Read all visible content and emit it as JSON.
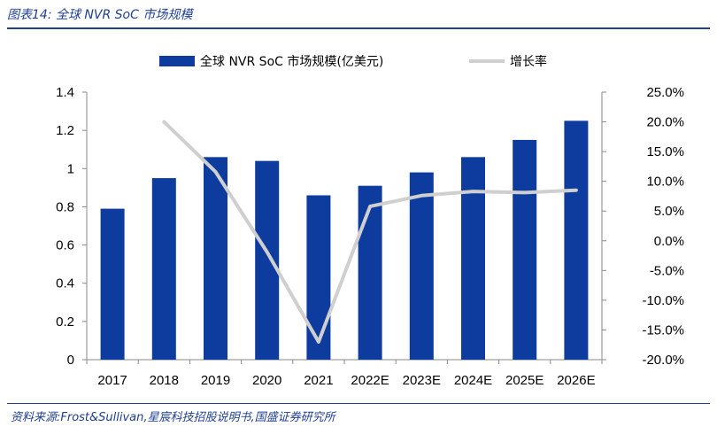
{
  "figure": {
    "title": "图表14:  全球 NVR SoC 市场规模",
    "source": "资料来源:Frost&Sullivan,星宸科技招股说明书,国盛证券研究所"
  },
  "colors": {
    "bar": "#0d3b9e",
    "line": "#cfcfcf",
    "accent": "#1f3f8f"
  },
  "chart_data": {
    "type": "bar",
    "categories": [
      "2017",
      "2018",
      "2019",
      "2020",
      "2021",
      "2022E",
      "2023E",
      "2024E",
      "2025E",
      "2026E"
    ],
    "series": [
      {
        "name": "全球 NVR SoC 市场规模(亿美元)",
        "type": "bar",
        "axis": "left",
        "values": [
          0.79,
          0.95,
          1.06,
          1.04,
          0.86,
          0.91,
          0.98,
          1.06,
          1.15,
          1.25
        ]
      },
      {
        "name": "增长率",
        "type": "line",
        "axis": "right",
        "values": [
          null,
          20.0,
          11.6,
          -1.9,
          -17.0,
          5.8,
          7.6,
          8.3,
          8.1,
          8.5
        ]
      }
    ],
    "ylim_left": [
      0,
      1.4
    ],
    "yticks_left": [
      0,
      0.2,
      0.4,
      0.6,
      0.8,
      1,
      1.2,
      1.4
    ],
    "ytick_labels_left": [
      "0",
      "0.2",
      "0.4",
      "0.6",
      "0.8",
      "1",
      "1.2",
      "1.4"
    ],
    "ylim_right": [
      -20,
      25
    ],
    "yticks_right": [
      -20,
      -15,
      -10,
      -5,
      0,
      5,
      10,
      15,
      20,
      25
    ],
    "ytick_labels_right": [
      "-20.0%",
      "-15.0%",
      "-10.0%",
      "-5.0%",
      "0.0%",
      "5.0%",
      "10.0%",
      "15.0%",
      "20.0%",
      "25.0%"
    ],
    "legend": [
      "全球 NVR SoC 市场规模(亿美元)",
      "增长率"
    ],
    "legend_position": "top-center",
    "grid": false
  }
}
